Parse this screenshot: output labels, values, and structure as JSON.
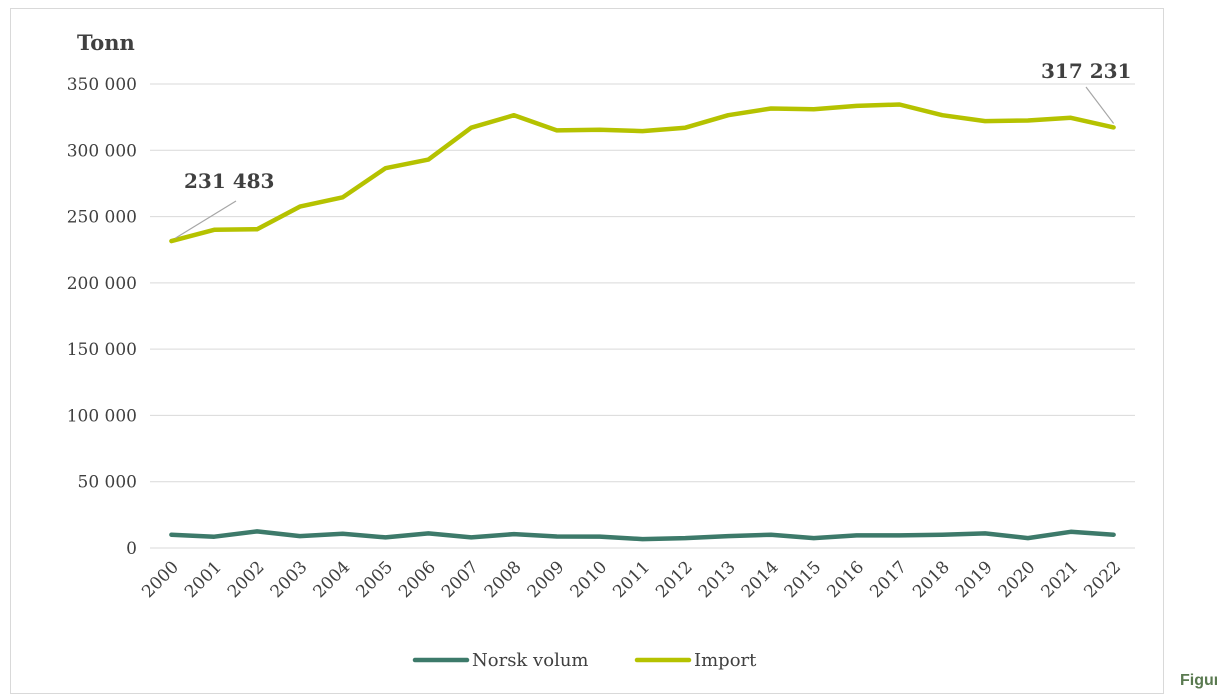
{
  "corner_text": "Figur",
  "chart_data": {
    "type": "line",
    "ylabel": "Tonn",
    "ylim": [
      0,
      350000
    ],
    "yticks": [
      0,
      50000,
      100000,
      150000,
      200000,
      250000,
      300000,
      350000
    ],
    "ytick_labels": [
      "0",
      "50 000",
      "100 000",
      "150 000",
      "200 000",
      "250 000",
      "300 000",
      "350 000"
    ],
    "grid": true,
    "legend_position": "bottom",
    "categories": [
      "2000",
      "2001",
      "2002",
      "2003",
      "2004",
      "2005",
      "2006",
      "2007",
      "2008",
      "2009",
      "2010",
      "2011",
      "2012",
      "2013",
      "2014",
      "2015",
      "2016",
      "2017",
      "2018",
      "2019",
      "2020",
      "2021",
      "2022"
    ],
    "series": [
      {
        "name": "Norsk volum",
        "color": "#3d7a6a",
        "values": [
          10000,
          8500,
          12500,
          9000,
          10800,
          8000,
          11000,
          8000,
          10500,
          8700,
          8600,
          6700,
          7500,
          9000,
          10000,
          7500,
          9500,
          9500,
          10000,
          11000,
          7500,
          12200,
          10000
        ]
      },
      {
        "name": "Import",
        "color": "#b5c200",
        "values": [
          231483,
          240000,
          240500,
          257500,
          264500,
          286500,
          293000,
          317000,
          326500,
          315000,
          315500,
          314500,
          317000,
          326500,
          331500,
          331000,
          333500,
          334500,
          326500,
          322000,
          322500,
          324500,
          317231
        ]
      }
    ],
    "annotations": [
      {
        "text": "231 483",
        "series": "Import",
        "category": "2000"
      },
      {
        "text": "317 231",
        "series": "Import",
        "category": "2022"
      }
    ]
  }
}
